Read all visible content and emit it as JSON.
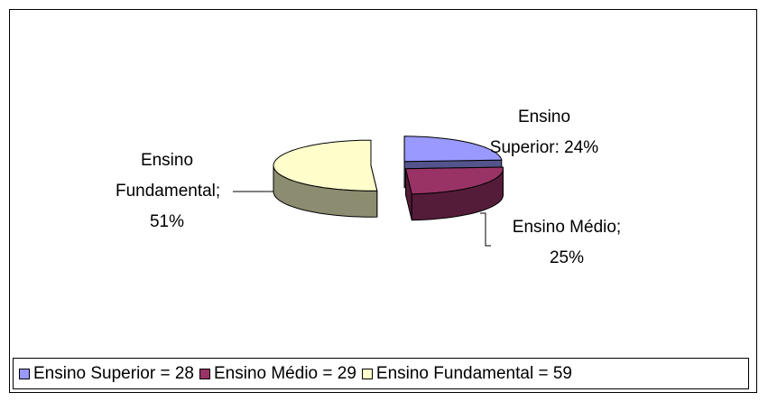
{
  "chart_data": {
    "type": "pie",
    "categories": [
      "Ensino Superior = 28",
      "Ensino Médio = 29",
      "Ensino Fundamental = 59"
    ],
    "values": [
      24,
      25,
      51
    ],
    "value_labels": [
      "Ensino Superior: 24%",
      "Ensino Médio; 25%",
      "Ensino Fundamental; 51%"
    ],
    "colors": [
      "#9999ff",
      "#993366",
      "#ffffcc"
    ],
    "legend": "bottom"
  }
}
